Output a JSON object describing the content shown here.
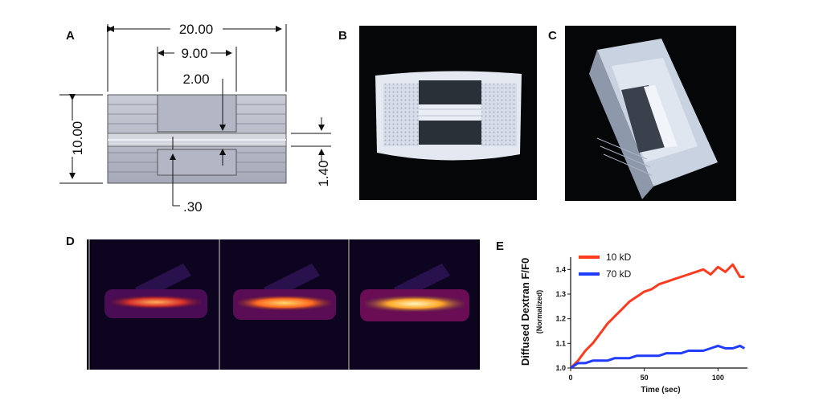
{
  "panels": {
    "a": "A",
    "b": "B",
    "c": "C",
    "d": "D",
    "e": "E"
  },
  "drawing": {
    "dim_width": "20.00",
    "dim_inner": "9.00",
    "dim_gap": "2.00",
    "dim_height": "10.00",
    "dim_side": "1.40",
    "dim_channel": ".30"
  },
  "chart_data": {
    "type": "line",
    "ylabel": "Diffused Dextran F/F0",
    "ylabel_sub": "(Normalized)",
    "xlabel": "Time (sec)",
    "xlim": [
      0,
      120
    ],
    "ylim": [
      1.0,
      1.45
    ],
    "xticks": [
      "0",
      "50",
      "100"
    ],
    "yticks": [
      "1.0",
      "1.1",
      "1.2",
      "1.3",
      "1.4"
    ],
    "legend_position": "top-left",
    "series": [
      {
        "name": "10 kD",
        "color": "#ff3b1f",
        "x": [
          0,
          5,
          10,
          15,
          20,
          25,
          30,
          35,
          40,
          45,
          50,
          55,
          60,
          65,
          70,
          75,
          80,
          85,
          90,
          95,
          100,
          105,
          110,
          115,
          118
        ],
        "y": [
          1.0,
          1.03,
          1.07,
          1.1,
          1.14,
          1.18,
          1.21,
          1.24,
          1.27,
          1.29,
          1.31,
          1.32,
          1.34,
          1.35,
          1.36,
          1.37,
          1.38,
          1.39,
          1.4,
          1.38,
          1.41,
          1.39,
          1.42,
          1.37,
          1.37
        ]
      },
      {
        "name": "70 kD",
        "color": "#1f3cff",
        "x": [
          0,
          5,
          10,
          15,
          20,
          25,
          30,
          35,
          40,
          45,
          50,
          55,
          60,
          65,
          70,
          75,
          80,
          85,
          90,
          95,
          100,
          105,
          110,
          115,
          118
        ],
        "y": [
          1.0,
          1.02,
          1.02,
          1.03,
          1.03,
          1.03,
          1.04,
          1.04,
          1.04,
          1.05,
          1.05,
          1.05,
          1.05,
          1.06,
          1.06,
          1.06,
          1.07,
          1.07,
          1.07,
          1.08,
          1.09,
          1.08,
          1.08,
          1.09,
          1.08
        ]
      }
    ]
  }
}
